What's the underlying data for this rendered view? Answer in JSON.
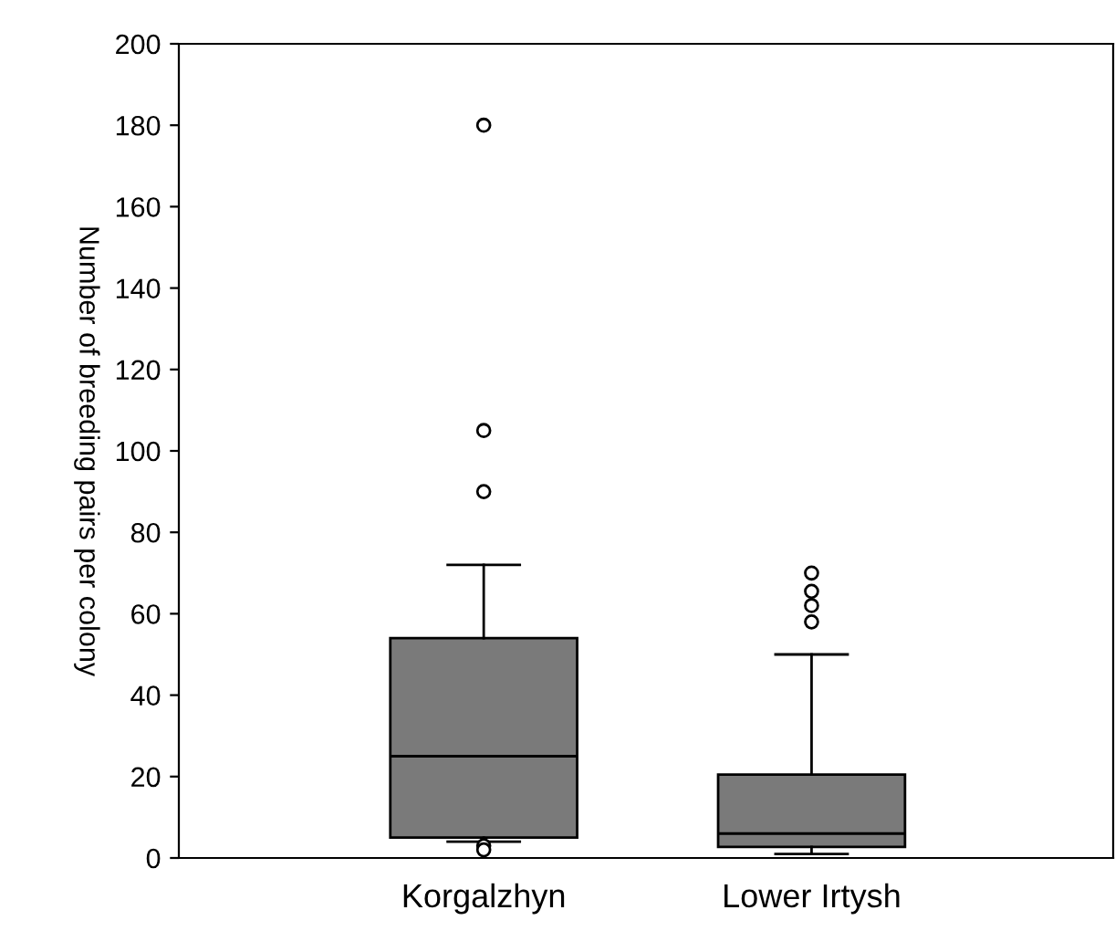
{
  "chart_data": {
    "type": "box",
    "ylabel": "Number of breeding pairs per colony",
    "categories": [
      "Korgalzhyn",
      "Lower Irtysh"
    ],
    "boxes": [
      {
        "low": 4,
        "q1": 5,
        "median": 25,
        "q3": 54,
        "high": 72,
        "outliers": [
          180,
          105,
          90,
          3,
          2
        ]
      },
      {
        "low": 1,
        "q1": 2.7,
        "median": 6,
        "q3": 20.5,
        "high": 50,
        "outliers": [
          70,
          65.5,
          62,
          58
        ]
      }
    ],
    "color": "#7a7a7a",
    "ylim": [
      0,
      200
    ],
    "yticks": [
      0,
      20,
      40,
      60,
      80,
      100,
      120,
      140,
      160,
      180,
      200
    ],
    "grid": false
  }
}
